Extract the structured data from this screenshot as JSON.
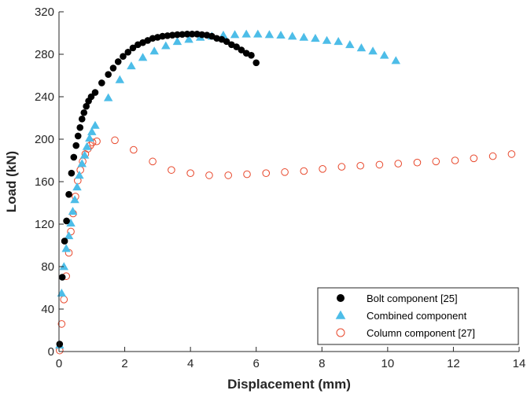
{
  "chart_data": {
    "type": "scatter",
    "xlabel": "Displacement (mm)",
    "ylabel": "Load (kN)",
    "xlim": [
      0,
      14
    ],
    "ylim": [
      0,
      320
    ],
    "xticks": [
      0,
      2,
      4,
      6,
      8,
      10,
      12,
      14
    ],
    "yticks": [
      0,
      40,
      80,
      120,
      160,
      200,
      240,
      280,
      320
    ],
    "grid": false,
    "legend_position": "bottom-right",
    "series": [
      {
        "name": "Bolt component [25]",
        "marker": "filled-circle",
        "color": "#000000",
        "points": [
          [
            0.02,
            7
          ],
          [
            0.1,
            70
          ],
          [
            0.17,
            104
          ],
          [
            0.23,
            123
          ],
          [
            0.3,
            148
          ],
          [
            0.38,
            168
          ],
          [
            0.45,
            183
          ],
          [
            0.52,
            194
          ],
          [
            0.58,
            203
          ],
          [
            0.64,
            211
          ],
          [
            0.7,
            219
          ],
          [
            0.76,
            225
          ],
          [
            0.83,
            231
          ],
          [
            0.9,
            236
          ],
          [
            0.98,
            240
          ],
          [
            1.1,
            244
          ],
          [
            1.3,
            253
          ],
          [
            1.5,
            261
          ],
          [
            1.65,
            267
          ],
          [
            1.8,
            273
          ],
          [
            1.95,
            278
          ],
          [
            2.1,
            282
          ],
          [
            2.25,
            286
          ],
          [
            2.4,
            289
          ],
          [
            2.55,
            291
          ],
          [
            2.7,
            293
          ],
          [
            2.85,
            295
          ],
          [
            3.0,
            296
          ],
          [
            3.15,
            297
          ],
          [
            3.3,
            297.5
          ],
          [
            3.45,
            298
          ],
          [
            3.6,
            298.5
          ],
          [
            3.75,
            298.7
          ],
          [
            3.9,
            299
          ],
          [
            4.05,
            299
          ],
          [
            4.2,
            299
          ],
          [
            4.35,
            298.5
          ],
          [
            4.5,
            298
          ],
          [
            4.65,
            297
          ],
          [
            4.8,
            295
          ],
          [
            4.95,
            294
          ],
          [
            5.1,
            292
          ],
          [
            5.25,
            289
          ],
          [
            5.4,
            287
          ],
          [
            5.55,
            284
          ],
          [
            5.7,
            281
          ],
          [
            5.85,
            279
          ],
          [
            6.0,
            272
          ]
        ]
      },
      {
        "name": "Combined component",
        "marker": "filled-triangle",
        "color": "#4dbde8",
        "points": [
          [
            0.02,
            6
          ],
          [
            0.08,
            55
          ],
          [
            0.15,
            80
          ],
          [
            0.22,
            97
          ],
          [
            0.3,
            109
          ],
          [
            0.36,
            121
          ],
          [
            0.42,
            132
          ],
          [
            0.48,
            143
          ],
          [
            0.55,
            155
          ],
          [
            0.62,
            166
          ],
          [
            0.7,
            177
          ],
          [
            0.78,
            185
          ],
          [
            0.85,
            193
          ],
          [
            0.93,
            201
          ],
          [
            1.0,
            207
          ],
          [
            1.1,
            213
          ],
          [
            1.5,
            239
          ],
          [
            1.85,
            256
          ],
          [
            2.2,
            269
          ],
          [
            2.55,
            277
          ],
          [
            2.9,
            283
          ],
          [
            3.25,
            288
          ],
          [
            3.6,
            292
          ],
          [
            3.95,
            294
          ],
          [
            4.3,
            296
          ],
          [
            4.65,
            297
          ],
          [
            5.0,
            298
          ],
          [
            5.35,
            298.5
          ],
          [
            5.7,
            299
          ],
          [
            6.05,
            299
          ],
          [
            6.4,
            298.5
          ],
          [
            6.75,
            298
          ],
          [
            7.1,
            297
          ],
          [
            7.45,
            296
          ],
          [
            7.8,
            295
          ],
          [
            8.15,
            293
          ],
          [
            8.5,
            292
          ],
          [
            8.85,
            289
          ],
          [
            9.2,
            286
          ],
          [
            9.55,
            283
          ],
          [
            9.9,
            279
          ],
          [
            10.25,
            274
          ]
        ]
      },
      {
        "name": "Column component [27]",
        "marker": "open-circle",
        "color": "#e8482c",
        "points": [
          [
            0.02,
            1
          ],
          [
            0.08,
            26
          ],
          [
            0.15,
            49
          ],
          [
            0.22,
            71
          ],
          [
            0.3,
            93
          ],
          [
            0.36,
            113
          ],
          [
            0.43,
            130
          ],
          [
            0.5,
            146
          ],
          [
            0.57,
            161
          ],
          [
            0.65,
            171
          ],
          [
            0.72,
            179
          ],
          [
            0.8,
            186
          ],
          [
            0.88,
            191
          ],
          [
            0.95,
            194
          ],
          [
            1.02,
            197
          ],
          [
            1.15,
            198
          ],
          [
            1.7,
            199
          ],
          [
            2.27,
            190
          ],
          [
            2.85,
            179
          ],
          [
            3.42,
            171
          ],
          [
            4.0,
            168
          ],
          [
            4.57,
            166
          ],
          [
            5.15,
            166
          ],
          [
            5.72,
            167
          ],
          [
            6.3,
            168
          ],
          [
            6.87,
            169
          ],
          [
            7.45,
            170
          ],
          [
            8.02,
            172
          ],
          [
            8.6,
            174
          ],
          [
            9.17,
            175
          ],
          [
            9.75,
            176
          ],
          [
            10.32,
            177
          ],
          [
            10.9,
            178
          ],
          [
            11.47,
            179
          ],
          [
            12.05,
            180
          ],
          [
            12.62,
            182
          ],
          [
            13.2,
            184
          ],
          [
            13.77,
            186
          ]
        ]
      }
    ]
  }
}
